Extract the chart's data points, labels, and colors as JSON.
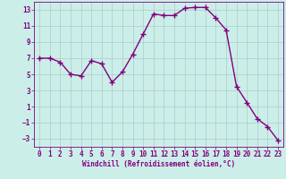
{
  "x": [
    0,
    1,
    2,
    3,
    4,
    5,
    6,
    7,
    8,
    9,
    10,
    11,
    12,
    13,
    14,
    15,
    16,
    17,
    18,
    19,
    20,
    21,
    22,
    23
  ],
  "y": [
    7,
    7,
    6.5,
    5,
    4.8,
    6.7,
    6.3,
    4,
    5.3,
    7.5,
    10,
    12.5,
    12.3,
    12.3,
    13.2,
    13.3,
    13.3,
    12,
    10.5,
    3.5,
    1.5,
    -0.5,
    -1.5,
    -3.2
  ],
  "line_color": "#800080",
  "marker": "+",
  "marker_size": 4,
  "line_width": 1.0,
  "bg_color": "#cceee8",
  "grid_color": "#aacccc",
  "xlabel": "Windchill (Refroidissement éolien,°C)",
  "xlabel_fontsize": 5.5,
  "tick_fontsize": 5.5,
  "ylim": [
    -4,
    14
  ],
  "xlim": [
    -0.5,
    23.5
  ],
  "yticks": [
    -3,
    -1,
    1,
    3,
    5,
    7,
    9,
    11,
    13
  ],
  "xticks": [
    0,
    1,
    2,
    3,
    4,
    5,
    6,
    7,
    8,
    9,
    10,
    11,
    12,
    13,
    14,
    15,
    16,
    17,
    18,
    19,
    20,
    21,
    22,
    23
  ]
}
